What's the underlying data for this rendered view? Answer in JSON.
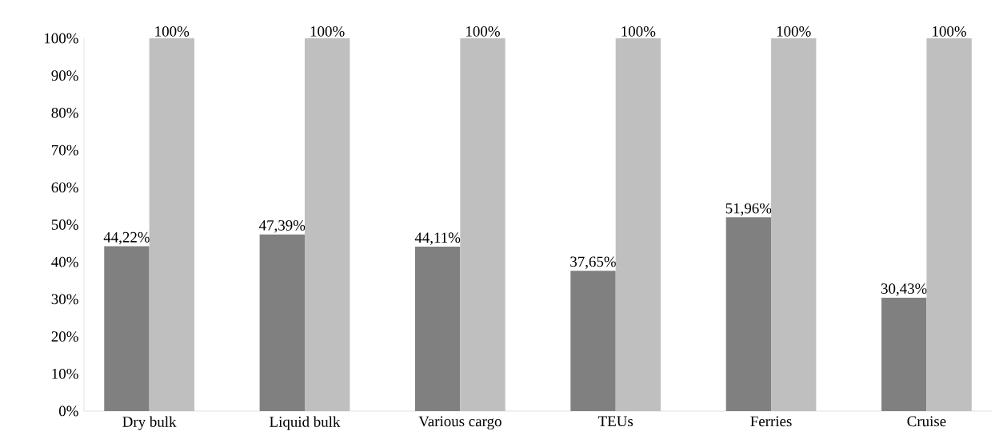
{
  "chart_data": {
    "type": "bar",
    "categories": [
      "Dry bulk",
      "Liquid bulk",
      "Various cargo",
      "TEUs",
      "Ferries",
      "Cruise"
    ],
    "series": [
      {
        "color": "#808080",
        "values": [
          44.22,
          47.39,
          44.11,
          37.65,
          51.96,
          30.43
        ],
        "value_labels": [
          "44,22%",
          "47,39%",
          "44,11%",
          "37,65%",
          "51,96%",
          "30,43%"
        ]
      },
      {
        "color": "#bfbfbf",
        "values": [
          100,
          100,
          100,
          100,
          100,
          100
        ],
        "value_labels": [
          "100%",
          "100%",
          "100%",
          "100%",
          "100%",
          "100%"
        ]
      }
    ],
    "ylim": [
      0,
      100
    ],
    "yticks": [
      {
        "value": 0,
        "label": "0%"
      },
      {
        "value": 10,
        "label": "10%"
      },
      {
        "value": 20,
        "label": "20%"
      },
      {
        "value": 30,
        "label": "30%"
      },
      {
        "value": 40,
        "label": "40%"
      },
      {
        "value": 50,
        "label": "50%"
      },
      {
        "value": 60,
        "label": "60%"
      },
      {
        "value": 70,
        "label": "70%"
      },
      {
        "value": 80,
        "label": "80%"
      },
      {
        "value": 90,
        "label": "90%"
      },
      {
        "value": 100,
        "label": "100%"
      }
    ],
    "grid": false
  }
}
